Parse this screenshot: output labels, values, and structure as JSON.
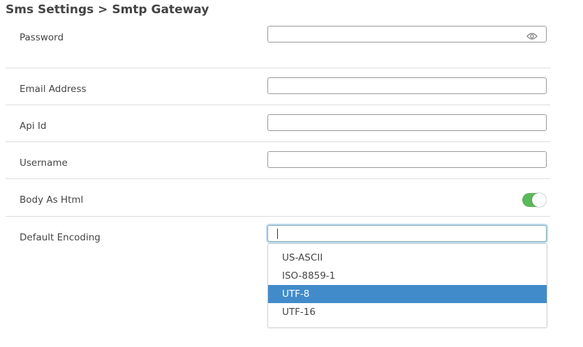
{
  "breadcrumb": "Sms Settings > Smtp Gateway",
  "fields": {
    "password": {
      "label": "Password",
      "value": ""
    },
    "email": {
      "label": "Email Address",
      "value": ""
    },
    "api_id": {
      "label": "Api Id",
      "value": ""
    },
    "username": {
      "label": "Username",
      "value": ""
    },
    "body_as_html": {
      "label": "Body As Html",
      "checked": true
    },
    "default_encoding": {
      "label": "Default Encoding",
      "value": "",
      "options": [
        "US-ASCII",
        "ISO-8859-1",
        "UTF-8",
        "UTF-16"
      ],
      "highlighted": "UTF-8"
    }
  },
  "colors": {
    "toggle_on": "#5cb85c",
    "highlight": "#428bca"
  }
}
